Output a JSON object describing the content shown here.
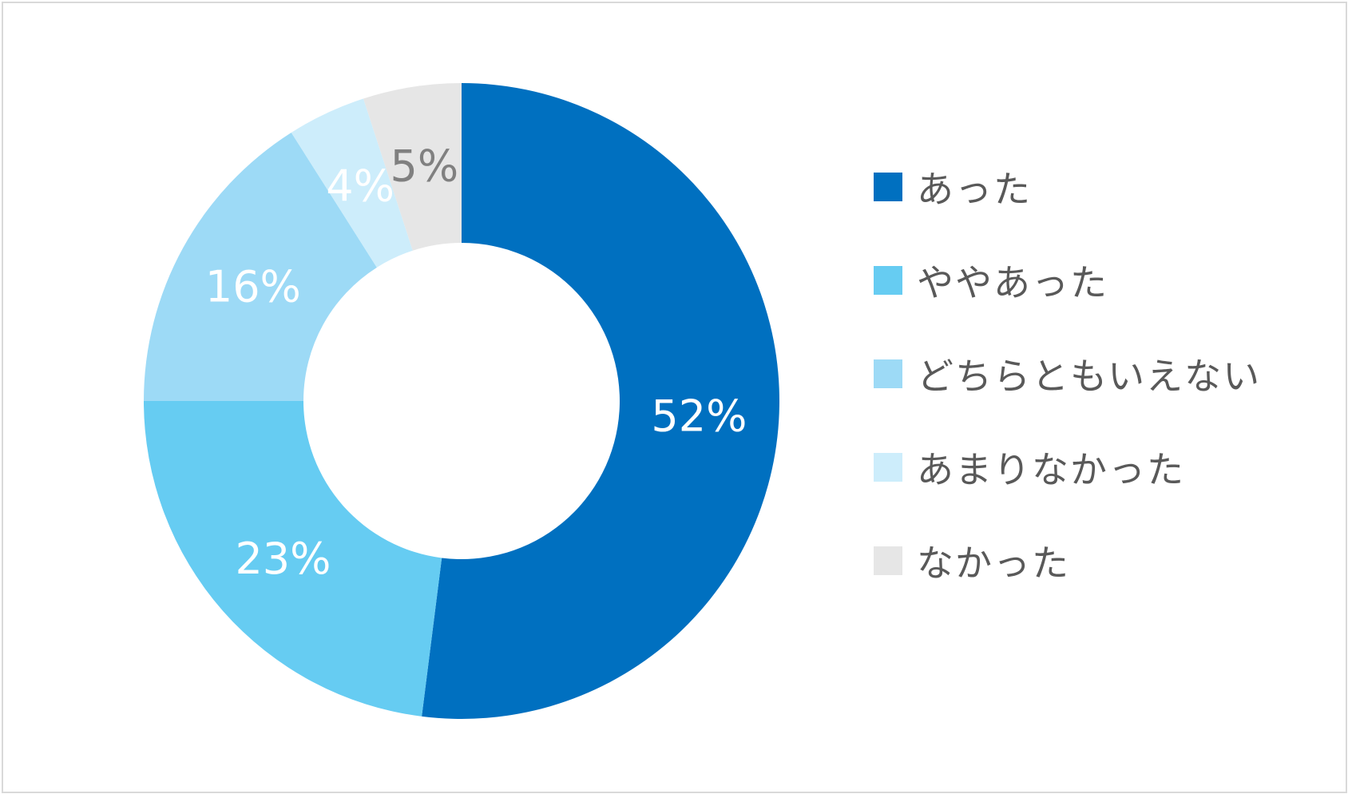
{
  "chart_data": {
    "type": "pie",
    "subtype": "donut",
    "title": "",
    "categories": [
      "あった",
      "ややあった",
      "どちらともいえない",
      "あまりなかった",
      "なかった"
    ],
    "values": [
      52,
      23,
      16,
      4,
      5
    ],
    "labels": [
      "52%",
      "23%",
      "16%",
      "4%",
      "5%"
    ],
    "colors": [
      "#0070C0",
      "#66CCF2",
      "#9DDAF6",
      "#CDEDFB",
      "#E6E6E6"
    ],
    "label_colors": [
      "#ffffff",
      "#ffffff",
      "#ffffff",
      "#ffffff",
      "#808080"
    ],
    "legend_position": "right",
    "start_angle": "12 o'clock, clockwise"
  },
  "legend": {
    "items": [
      {
        "label": "あった",
        "color": "#0070C0"
      },
      {
        "label": "ややあった",
        "color": "#66CCF2"
      },
      {
        "label": "どちらともいえない",
        "color": "#9DDAF6"
      },
      {
        "label": "あまりなかった",
        "color": "#CDEDFB"
      },
      {
        "label": "なかった",
        "color": "#E6E6E6"
      }
    ]
  }
}
